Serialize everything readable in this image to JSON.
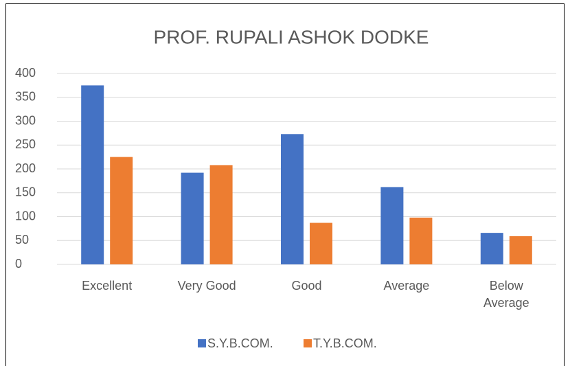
{
  "chart_data": {
    "type": "bar",
    "title": "PROF. RUPALI ASHOK DODKE",
    "categories": [
      "Excellent",
      "Very Good",
      "Good",
      "Average",
      "Below Average"
    ],
    "series": [
      {
        "name": "S.Y.B.COM.",
        "color": "#4472c4",
        "values": [
          375,
          192,
          273,
          162,
          66
        ]
      },
      {
        "name": "T.Y.B.COM.",
        "color": "#ed7d31",
        "values": [
          225,
          208,
          87,
          98,
          59
        ]
      }
    ],
    "ylim": [
      0,
      400
    ],
    "yticks": [
      0,
      50,
      100,
      150,
      200,
      250,
      300,
      350,
      400
    ],
    "grid": true,
    "legend": "bottom"
  }
}
